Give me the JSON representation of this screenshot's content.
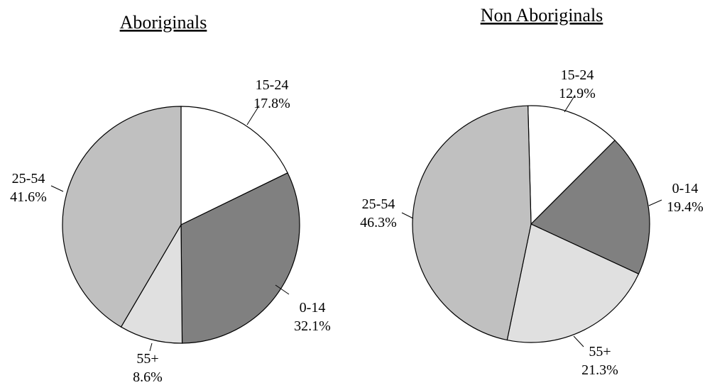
{
  "chart_data": [
    {
      "type": "pie",
      "title": "Aboriginals",
      "slices": [
        {
          "label": "15-24",
          "value": 17.8,
          "value_label": "17.8%",
          "color": "#ffffff"
        },
        {
          "label": "0-14",
          "value": 32.1,
          "value_label": "32.1%",
          "color": "#808080"
        },
        {
          "label": "55+",
          "value": 8.6,
          "value_label": "8.6%",
          "color": "#e0e0e0"
        },
        {
          "label": "25-54",
          "value": 41.6,
          "value_label": "41.6%",
          "color": "#c0c0c0"
        }
      ]
    },
    {
      "type": "pie",
      "title": "Non Aboriginals",
      "slices": [
        {
          "label": "15-24",
          "value": 12.9,
          "value_label": "12.9%",
          "color": "#ffffff"
        },
        {
          "label": "0-14",
          "value": 19.4,
          "value_label": "19.4%",
          "color": "#808080"
        },
        {
          "label": "55+",
          "value": 21.3,
          "value_label": "21.3%",
          "color": "#e0e0e0"
        },
        {
          "label": "25-54",
          "value": 46.3,
          "value_label": "46.3%",
          "color": "#c0c0c0"
        }
      ]
    }
  ]
}
